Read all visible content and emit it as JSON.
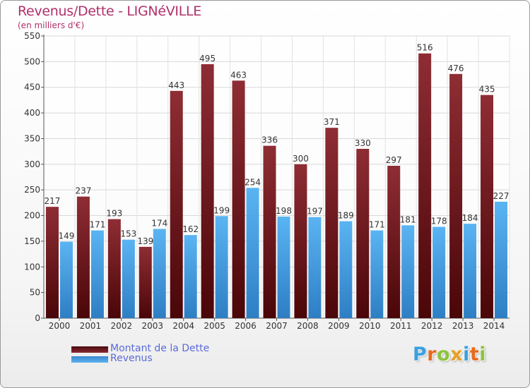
{
  "header": {
    "title": "Revenus/Dette - LIGNéVILLE",
    "subtitle": "(en milliers d'€)"
  },
  "chart_data": {
    "type": "bar",
    "categories": [
      "2000",
      "2001",
      "2002",
      "2003",
      "2004",
      "2005",
      "2006",
      "2007",
      "2008",
      "2009",
      "2010",
      "2011",
      "2012",
      "2013",
      "2014"
    ],
    "series": [
      {
        "name": "Montant de la Dette",
        "values": [
          217,
          237,
          193,
          139,
          443,
          495,
          463,
          336,
          300,
          371,
          330,
          297,
          516,
          476,
          435
        ],
        "color": "#7a2228"
      },
      {
        "name": "Revenus",
        "values": [
          149,
          171,
          153,
          174,
          162,
          199,
          254,
          198,
          197,
          189,
          171,
          181,
          178,
          184,
          227
        ],
        "color": "#4aa3e6"
      }
    ],
    "yticks": [
      0,
      50,
      100,
      150,
      200,
      250,
      300,
      350,
      400,
      450,
      500,
      550
    ],
    "ylim": [
      0,
      550
    ],
    "grid": true,
    "legend_position": "bottom-left"
  },
  "legend": {
    "dette_label": "Montant de la Dette",
    "revenus_label": "Revenus"
  },
  "brand": {
    "letters": [
      "P",
      "r",
      "o",
      "x",
      "i",
      "t",
      "i"
    ],
    "colors": [
      "#3aa0e0",
      "#e86a1a",
      "#8cc43c",
      "#e8a020",
      "#3aa0e0",
      "#e86a1a",
      "#8cc43c"
    ]
  }
}
